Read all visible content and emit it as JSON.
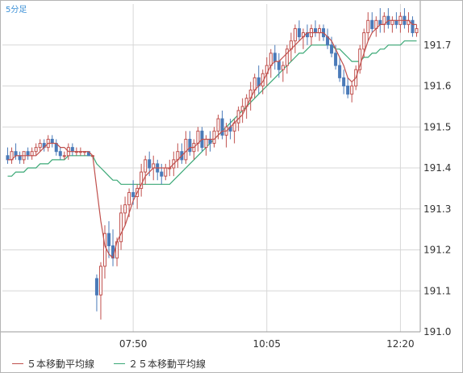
{
  "period_label": "5分足",
  "legend": [
    {
      "label": "５本移動平均線",
      "color": "#c0504d"
    },
    {
      "label": "２５本移動平均線",
      "color": "#3aa876"
    }
  ],
  "colors": {
    "up": "#c0504d",
    "down": "#4a7ab8",
    "grid": "#d7d7d7",
    "ma5": "#c0504d",
    "ma25": "#3aa876"
  },
  "chart_data": {
    "type": "candlestick",
    "ylim": [
      191.0,
      191.8
    ],
    "yticks": [
      "191.0",
      "191.1",
      "191.2",
      "191.3",
      "191.4",
      "191.5",
      "191.6",
      "191.7"
    ],
    "xticks": [
      {
        "index": 31,
        "label": "07:50"
      },
      {
        "index": 64,
        "label": "10:05"
      },
      {
        "index": 97,
        "label": "12:20"
      }
    ],
    "candles": [
      [
        191.43,
        191.45,
        191.41,
        191.42
      ],
      [
        191.42,
        191.45,
        191.41,
        191.44
      ],
      [
        191.44,
        191.46,
        191.42,
        191.43
      ],
      [
        191.43,
        191.44,
        191.41,
        191.42
      ],
      [
        191.42,
        191.44,
        191.41,
        191.44
      ],
      [
        191.44,
        191.45,
        191.42,
        191.43
      ],
      [
        191.43,
        191.45,
        191.42,
        191.44
      ],
      [
        191.44,
        191.46,
        191.43,
        191.45
      ],
      [
        191.45,
        191.47,
        191.44,
        191.46
      ],
      [
        191.46,
        191.47,
        191.44,
        191.45
      ],
      [
        191.45,
        191.48,
        191.44,
        191.47
      ],
      [
        191.47,
        191.48,
        191.45,
        191.46
      ],
      [
        191.46,
        191.47,
        191.43,
        191.44
      ],
      [
        191.44,
        191.45,
        191.42,
        191.43
      ],
      [
        191.43,
        191.44,
        191.42,
        191.43
      ],
      [
        191.43,
        191.46,
        191.42,
        191.45
      ],
      [
        191.45,
        191.46,
        191.43,
        191.44
      ],
      [
        191.44,
        191.45,
        191.43,
        191.44
      ],
      [
        191.44,
        191.45,
        191.43,
        191.44
      ],
      [
        191.44,
        191.44,
        191.43,
        191.44
      ],
      [
        191.44,
        191.44,
        191.43,
        191.43
      ],
      [
        191.43,
        191.43,
        191.43,
        191.43
      ],
      [
        191.13,
        191.14,
        191.05,
        191.09
      ],
      [
        191.09,
        191.17,
        191.03,
        191.16
      ],
      [
        191.16,
        191.26,
        191.13,
        191.24
      ],
      [
        191.24,
        191.27,
        191.18,
        191.21
      ],
      [
        191.21,
        191.25,
        191.16,
        191.18
      ],
      [
        191.18,
        191.23,
        191.16,
        191.22
      ],
      [
        191.22,
        191.31,
        191.2,
        191.29
      ],
      [
        191.29,
        191.33,
        191.26,
        191.31
      ],
      [
        191.31,
        191.35,
        191.28,
        191.34
      ],
      [
        191.34,
        191.37,
        191.31,
        191.33
      ],
      [
        191.33,
        191.36,
        191.3,
        191.35
      ],
      [
        191.35,
        191.41,
        191.33,
        191.39
      ],
      [
        191.39,
        191.43,
        191.36,
        191.42
      ],
      [
        191.42,
        191.44,
        191.38,
        191.4
      ],
      [
        191.4,
        191.43,
        191.37,
        191.41
      ],
      [
        191.41,
        191.42,
        191.37,
        191.39
      ],
      [
        191.39,
        191.41,
        191.36,
        191.38
      ],
      [
        191.38,
        191.41,
        191.37,
        191.4
      ],
      [
        191.4,
        191.42,
        191.38,
        191.4
      ],
      [
        191.4,
        191.44,
        191.38,
        191.42
      ],
      [
        191.42,
        191.46,
        191.4,
        191.44
      ],
      [
        191.44,
        191.46,
        191.41,
        191.42
      ],
      [
        191.42,
        191.49,
        191.41,
        191.47
      ],
      [
        191.47,
        191.49,
        191.43,
        191.44
      ],
      [
        191.44,
        191.47,
        191.42,
        191.46
      ],
      [
        191.46,
        191.5,
        191.44,
        191.49
      ],
      [
        191.49,
        191.5,
        191.44,
        191.45
      ],
      [
        191.45,
        191.48,
        191.43,
        191.47
      ],
      [
        191.47,
        191.49,
        191.44,
        191.46
      ],
      [
        191.46,
        191.5,
        191.45,
        191.49
      ],
      [
        191.49,
        191.53,
        191.47,
        191.52
      ],
      [
        191.52,
        191.54,
        191.47,
        191.48
      ],
      [
        191.48,
        191.51,
        191.45,
        191.5
      ],
      [
        191.5,
        191.52,
        191.47,
        191.49
      ],
      [
        191.49,
        191.52,
        191.46,
        191.51
      ],
      [
        191.51,
        191.55,
        191.49,
        191.54
      ],
      [
        191.54,
        191.57,
        191.51,
        191.55
      ],
      [
        191.55,
        191.58,
        191.52,
        191.57
      ],
      [
        191.57,
        191.61,
        191.54,
        191.59
      ],
      [
        191.59,
        191.63,
        191.57,
        191.62
      ],
      [
        191.62,
        191.65,
        191.58,
        191.6
      ],
      [
        191.6,
        191.64,
        191.58,
        191.63
      ],
      [
        191.63,
        191.67,
        191.6,
        191.65
      ],
      [
        191.65,
        191.69,
        191.62,
        191.68
      ],
      [
        191.68,
        191.7,
        191.64,
        191.66
      ],
      [
        191.66,
        191.68,
        191.62,
        191.64
      ],
      [
        191.64,
        191.66,
        191.61,
        191.65
      ],
      [
        191.65,
        191.7,
        191.63,
        191.69
      ],
      [
        191.69,
        191.73,
        191.66,
        191.71
      ],
      [
        191.71,
        191.75,
        191.68,
        191.74
      ],
      [
        191.74,
        191.76,
        191.71,
        191.72
      ],
      [
        191.72,
        191.74,
        191.69,
        191.73
      ],
      [
        191.73,
        191.75,
        191.7,
        191.72
      ],
      [
        191.72,
        191.75,
        191.7,
        191.74
      ],
      [
        191.74,
        191.76,
        191.72,
        191.73
      ],
      [
        191.73,
        191.75,
        191.71,
        191.74
      ],
      [
        191.74,
        191.75,
        191.71,
        191.72
      ],
      [
        191.72,
        191.74,
        191.69,
        191.7
      ],
      [
        191.7,
        191.72,
        191.67,
        191.68
      ],
      [
        191.68,
        191.7,
        191.64,
        191.65
      ],
      [
        191.65,
        191.67,
        191.61,
        191.62
      ],
      [
        191.62,
        191.64,
        191.58,
        191.6
      ],
      [
        191.6,
        191.62,
        191.57,
        191.58
      ],
      [
        191.58,
        191.61,
        191.56,
        191.6
      ],
      [
        191.6,
        191.65,
        191.59,
        191.64
      ],
      [
        191.64,
        191.7,
        191.63,
        191.69
      ],
      [
        191.69,
        191.74,
        191.67,
        191.73
      ],
      [
        191.73,
        191.78,
        191.71,
        191.76
      ],
      [
        191.76,
        191.78,
        191.73,
        191.74
      ],
      [
        191.74,
        191.77,
        191.72,
        191.76
      ],
      [
        191.76,
        191.79,
        191.73,
        191.75
      ],
      [
        191.75,
        191.78,
        191.73,
        191.77
      ],
      [
        191.77,
        191.79,
        191.74,
        191.75
      ],
      [
        191.75,
        191.77,
        191.73,
        191.76
      ],
      [
        191.76,
        191.78,
        191.74,
        191.75
      ],
      [
        191.75,
        191.78,
        191.73,
        191.77
      ],
      [
        191.77,
        191.79,
        191.74,
        191.75
      ],
      [
        191.75,
        191.78,
        191.73,
        191.76
      ],
      [
        191.76,
        191.77,
        191.72,
        191.73
      ],
      [
        191.73,
        191.75,
        191.72,
        191.74
      ]
    ],
    "ma5": [
      191.42,
      191.42,
      191.43,
      191.43,
      191.43,
      191.43,
      191.43,
      191.43,
      191.44,
      191.45,
      191.46,
      191.46,
      191.46,
      191.45,
      191.45,
      191.44,
      191.44,
      191.44,
      191.44,
      191.44,
      191.44,
      191.43,
      191.35,
      191.27,
      191.21,
      191.19,
      191.18,
      191.22,
      191.24,
      191.26,
      191.29,
      191.32,
      191.34,
      191.36,
      191.38,
      191.39,
      191.4,
      191.4,
      191.4,
      191.4,
      191.4,
      191.41,
      191.42,
      191.43,
      191.44,
      191.45,
      191.45,
      191.46,
      191.47,
      191.47,
      191.47,
      191.47,
      191.48,
      191.49,
      191.49,
      191.5,
      191.51,
      191.52,
      191.53,
      191.55,
      191.57,
      191.59,
      191.6,
      191.61,
      191.63,
      191.65,
      191.66,
      191.66,
      191.67,
      191.68,
      191.69,
      191.7,
      191.71,
      191.72,
      191.73,
      191.73,
      191.73,
      191.73,
      191.73,
      191.72,
      191.71,
      191.69,
      191.67,
      191.65,
      191.62,
      191.61,
      191.62,
      191.65,
      191.68,
      191.71,
      191.73,
      191.74,
      191.75,
      191.75,
      191.76,
      191.76,
      191.76,
      191.76,
      191.76,
      191.76,
      191.75,
      191.75
    ],
    "ma25": [
      191.38,
      191.38,
      191.39,
      191.39,
      191.39,
      191.4,
      191.4,
      191.4,
      191.41,
      191.41,
      191.41,
      191.42,
      191.42,
      191.42,
      191.42,
      191.43,
      191.43,
      191.43,
      191.43,
      191.43,
      191.43,
      191.43,
      191.41,
      191.4,
      191.39,
      191.38,
      191.37,
      191.37,
      191.36,
      191.36,
      191.36,
      191.36,
      191.36,
      191.36,
      191.36,
      191.36,
      191.36,
      191.36,
      191.36,
      191.36,
      191.36,
      191.37,
      191.38,
      191.39,
      191.4,
      191.41,
      191.42,
      191.43,
      191.44,
      191.45,
      191.46,
      191.47,
      191.48,
      191.49,
      191.5,
      191.51,
      191.52,
      191.53,
      191.54,
      191.55,
      191.56,
      191.57,
      191.58,
      191.59,
      191.6,
      191.61,
      191.62,
      191.63,
      191.64,
      191.65,
      191.66,
      191.67,
      191.68,
      191.68,
      191.69,
      191.7,
      191.7,
      191.7,
      191.7,
      191.7,
      191.7,
      191.69,
      191.69,
      191.68,
      191.67,
      191.66,
      191.66,
      191.66,
      191.67,
      191.67,
      191.68,
      191.68,
      191.69,
      191.69,
      191.7,
      191.7,
      191.7,
      191.7,
      191.71,
      191.71,
      191.71,
      191.71
    ]
  }
}
